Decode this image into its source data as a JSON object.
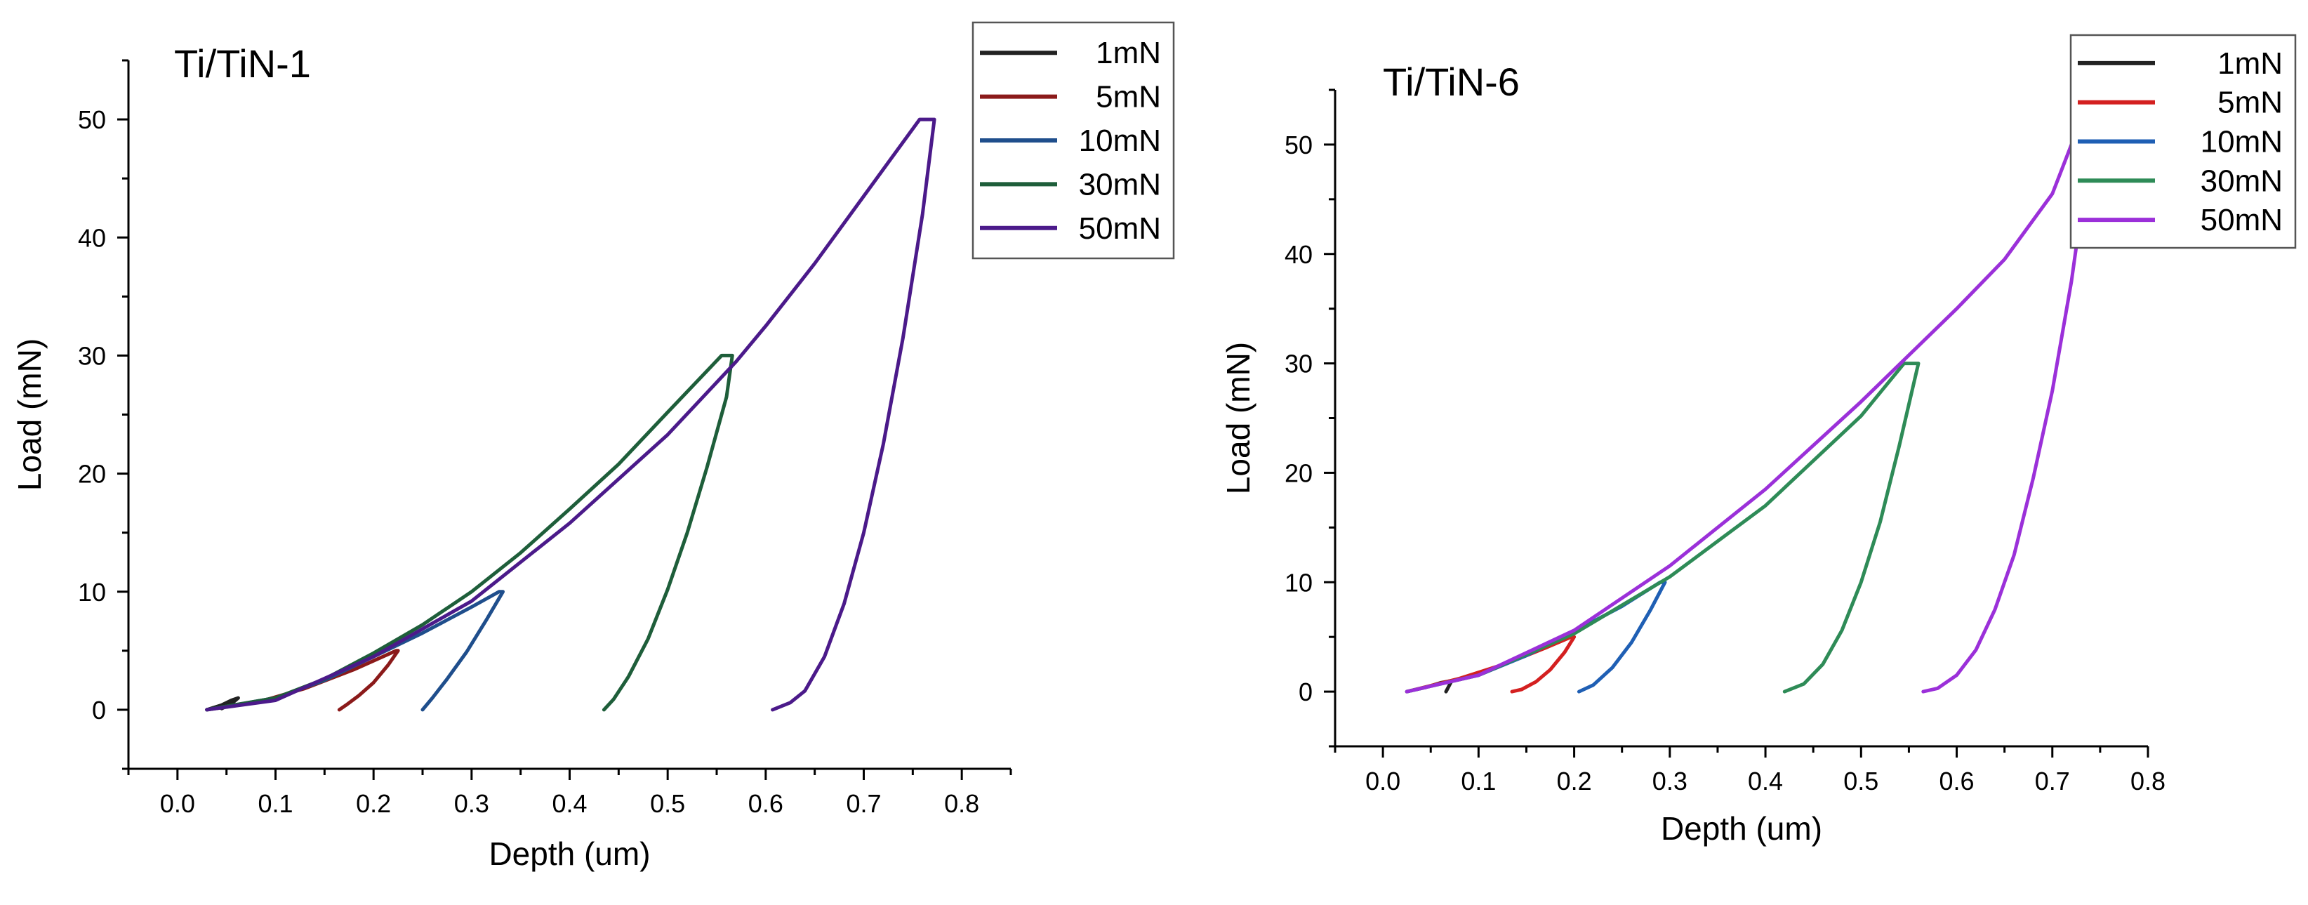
{
  "chart_data": [
    {
      "type": "line",
      "title": "Ti/TiN-1",
      "xlabel": "Depth (um)",
      "ylabel": "Load (mN)",
      "xlim": [
        -0.05,
        0.85
      ],
      "ylim": [
        -5,
        55
      ],
      "xticks": [
        0.0,
        0.1,
        0.2,
        0.3,
        0.4,
        0.5,
        0.6,
        0.7,
        0.8
      ],
      "xtick_labels": [
        "0.0",
        "0.1",
        "0.2",
        "0.3",
        "0.4",
        "0.5",
        "0.6",
        "0.7",
        "0.8"
      ],
      "yticks": [
        0,
        10,
        20,
        30,
        40,
        50
      ],
      "ytick_labels": [
        "0",
        "10",
        "20",
        "30",
        "40",
        "50"
      ],
      "legend_position": "top-right",
      "series": [
        {
          "name": "1mN",
          "color": "#222222",
          "x": [
            0.03,
            0.045,
            0.055,
            0.062,
            0.055,
            0.045
          ],
          "y": [
            0,
            0.4,
            0.8,
            1.0,
            0.5,
            0.1
          ]
        },
        {
          "name": "5mN",
          "color": "#8b1a1a",
          "x": [
            0.03,
            0.08,
            0.13,
            0.18,
            0.223,
            0.225,
            0.215,
            0.2,
            0.185,
            0.172,
            0.165
          ],
          "y": [
            0,
            0.6,
            1.8,
            3.4,
            5.0,
            5.0,
            3.8,
            2.3,
            1.2,
            0.4,
            0
          ]
        },
        {
          "name": "10mN",
          "color": "#1f4e8c",
          "x": [
            0.03,
            0.1,
            0.15,
            0.2,
            0.25,
            0.3,
            0.328,
            0.332,
            0.315,
            0.295,
            0.275,
            0.26,
            0.25
          ],
          "y": [
            0,
            1.0,
            2.5,
            4.5,
            6.5,
            8.7,
            10.0,
            10.0,
            7.6,
            4.9,
            2.6,
            1.0,
            0
          ]
        },
        {
          "name": "30mN",
          "color": "#1e5e3a",
          "x": [
            0.03,
            0.1,
            0.15,
            0.2,
            0.25,
            0.3,
            0.35,
            0.4,
            0.45,
            0.5,
            0.555,
            0.566,
            0.56,
            0.54,
            0.52,
            0.5,
            0.48,
            0.46,
            0.445,
            0.435
          ],
          "y": [
            0,
            1.0,
            2.6,
            4.8,
            7.2,
            10.0,
            13.3,
            17.0,
            20.8,
            25.2,
            30.0,
            30.0,
            26.5,
            20.5,
            15.0,
            10.2,
            6.0,
            2.8,
            0.9,
            0
          ]
        },
        {
          "name": "50mN",
          "color": "#4b1a8a",
          "x": [
            0.03,
            0.1,
            0.2,
            0.3,
            0.4,
            0.5,
            0.57,
            0.6,
            0.65,
            0.7,
            0.757,
            0.772,
            0.76,
            0.74,
            0.72,
            0.7,
            0.68,
            0.66,
            0.64,
            0.625,
            0.607
          ],
          "y": [
            0,
            0.8,
            4.5,
            9.2,
            15.8,
            23.3,
            29.5,
            32.5,
            37.8,
            43.5,
            50.0,
            50.0,
            42.0,
            31.5,
            22.5,
            15.0,
            9.0,
            4.5,
            1.6,
            0.6,
            0
          ]
        }
      ]
    },
    {
      "type": "line",
      "title": "Ti/TiN-6",
      "xlabel": "Depth (um)",
      "ylabel": "Load (mN)",
      "xlim": [
        -0.05,
        0.8
      ],
      "ylim": [
        -5,
        55
      ],
      "xticks": [
        0.0,
        0.1,
        0.2,
        0.3,
        0.4,
        0.5,
        0.6,
        0.7,
        0.8
      ],
      "xtick_labels": [
        "0.0",
        "0.1",
        "0.2",
        "0.3",
        "0.4",
        "0.5",
        "0.6",
        "0.7",
        "0.8"
      ],
      "yticks": [
        0,
        10,
        20,
        30,
        40,
        50
      ],
      "ytick_labels": [
        "0",
        "10",
        "20",
        "30",
        "40",
        "50"
      ],
      "legend_position": "top-right",
      "series": [
        {
          "name": "1mN",
          "color": "#222222",
          "x": [
            0.025,
            0.045,
            0.06,
            0.072,
            0.066
          ],
          "y": [
            0,
            0.4,
            0.8,
            1.0,
            0
          ]
        },
        {
          "name": "5mN",
          "color": "#d42020",
          "x": [
            0.025,
            0.08,
            0.13,
            0.17,
            0.197,
            0.2,
            0.19,
            0.175,
            0.16,
            0.145,
            0.135
          ],
          "y": [
            0,
            1.2,
            2.6,
            4.0,
            5.0,
            5.0,
            3.6,
            2.0,
            0.9,
            0.2,
            0
          ]
        },
        {
          "name": "10mN",
          "color": "#1f5fb4",
          "x": [
            0.025,
            0.1,
            0.15,
            0.2,
            0.25,
            0.29,
            0.295,
            0.28,
            0.26,
            0.24,
            0.22,
            0.205
          ],
          "y": [
            0,
            1.5,
            3.3,
            5.5,
            7.8,
            10.0,
            10.0,
            7.5,
            4.5,
            2.2,
            0.6,
            0
          ]
        },
        {
          "name": "30mN",
          "color": "#2e8b57",
          "x": [
            0.025,
            0.1,
            0.2,
            0.3,
            0.4,
            0.5,
            0.545,
            0.56,
            0.54,
            0.52,
            0.5,
            0.48,
            0.46,
            0.44,
            0.42
          ],
          "y": [
            0,
            1.5,
            5.3,
            10.5,
            17.0,
            25.2,
            30.0,
            30.0,
            22.5,
            15.5,
            10.0,
            5.6,
            2.5,
            0.7,
            0
          ]
        },
        {
          "name": "50mN",
          "color": "#9b30d9",
          "x": [
            0.025,
            0.1,
            0.2,
            0.3,
            0.4,
            0.5,
            0.6,
            0.65,
            0.7,
            0.72,
            0.74,
            0.72,
            0.7,
            0.68,
            0.66,
            0.64,
            0.62,
            0.6,
            0.58,
            0.565
          ],
          "y": [
            0,
            1.5,
            5.6,
            11.5,
            18.5,
            26.5,
            35.0,
            39.5,
            45.5,
            50.0,
            50.0,
            37.5,
            27.5,
            19.5,
            12.5,
            7.5,
            3.8,
            1.5,
            0.3,
            0
          ]
        }
      ]
    }
  ]
}
